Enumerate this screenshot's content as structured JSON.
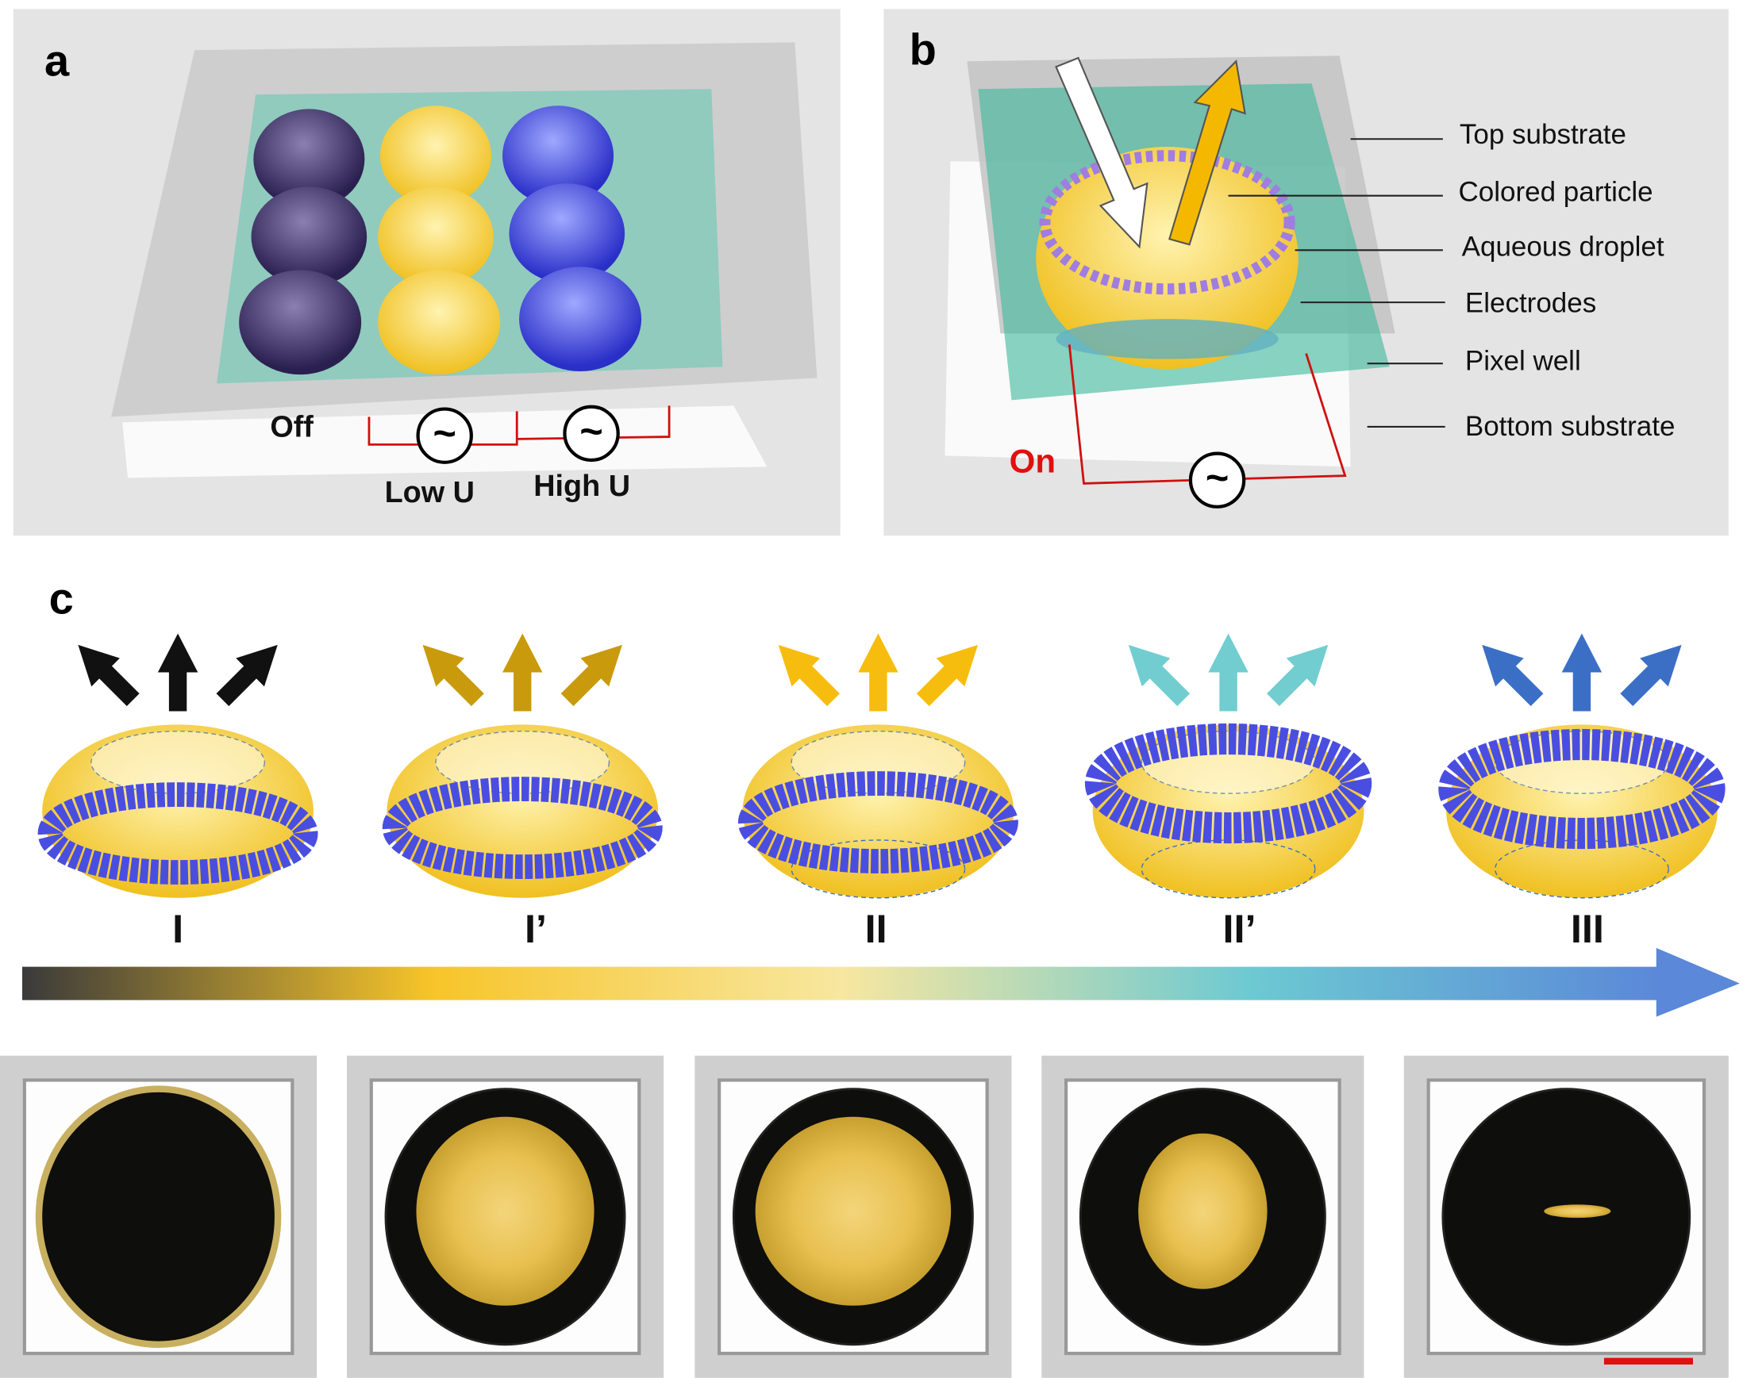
{
  "panels": {
    "a": "a",
    "b": "b",
    "c": "c"
  },
  "panel_a": {
    "off": "Off",
    "low": "Low U",
    "high": "High U",
    "ac_symbol": "~"
  },
  "panel_b": {
    "on": "On",
    "ac_symbol": "~",
    "legend": [
      "Top substrate",
      "Colored particle",
      "Aqueous droplet",
      "Electrodes",
      "Pixel well",
      "Bottom substrate"
    ]
  },
  "panel_c": {
    "states": [
      {
        "label": "I",
        "arrow_color": "#111111"
      },
      {
        "label": "I’",
        "arrow_color": "#c99a0c"
      },
      {
        "label": "II",
        "arrow_color": "#f7bd0e"
      },
      {
        "label": "II’",
        "arrow_color": "#72cdd0"
      },
      {
        "label": "III",
        "arrow_color": "#3b6fc6"
      }
    ],
    "gradient_colors": [
      "#3a3a3a",
      "#f7c52a",
      "#f7e7a0",
      "#6cc9d2",
      "#5b88d8"
    ]
  },
  "colors": {
    "droplet": "#f6c92e",
    "particle": "#4a4ee0",
    "well": "#3bb89a",
    "electrode_line": "#d01010",
    "on_label": "#e01010",
    "scale_bar": "#e01010"
  }
}
